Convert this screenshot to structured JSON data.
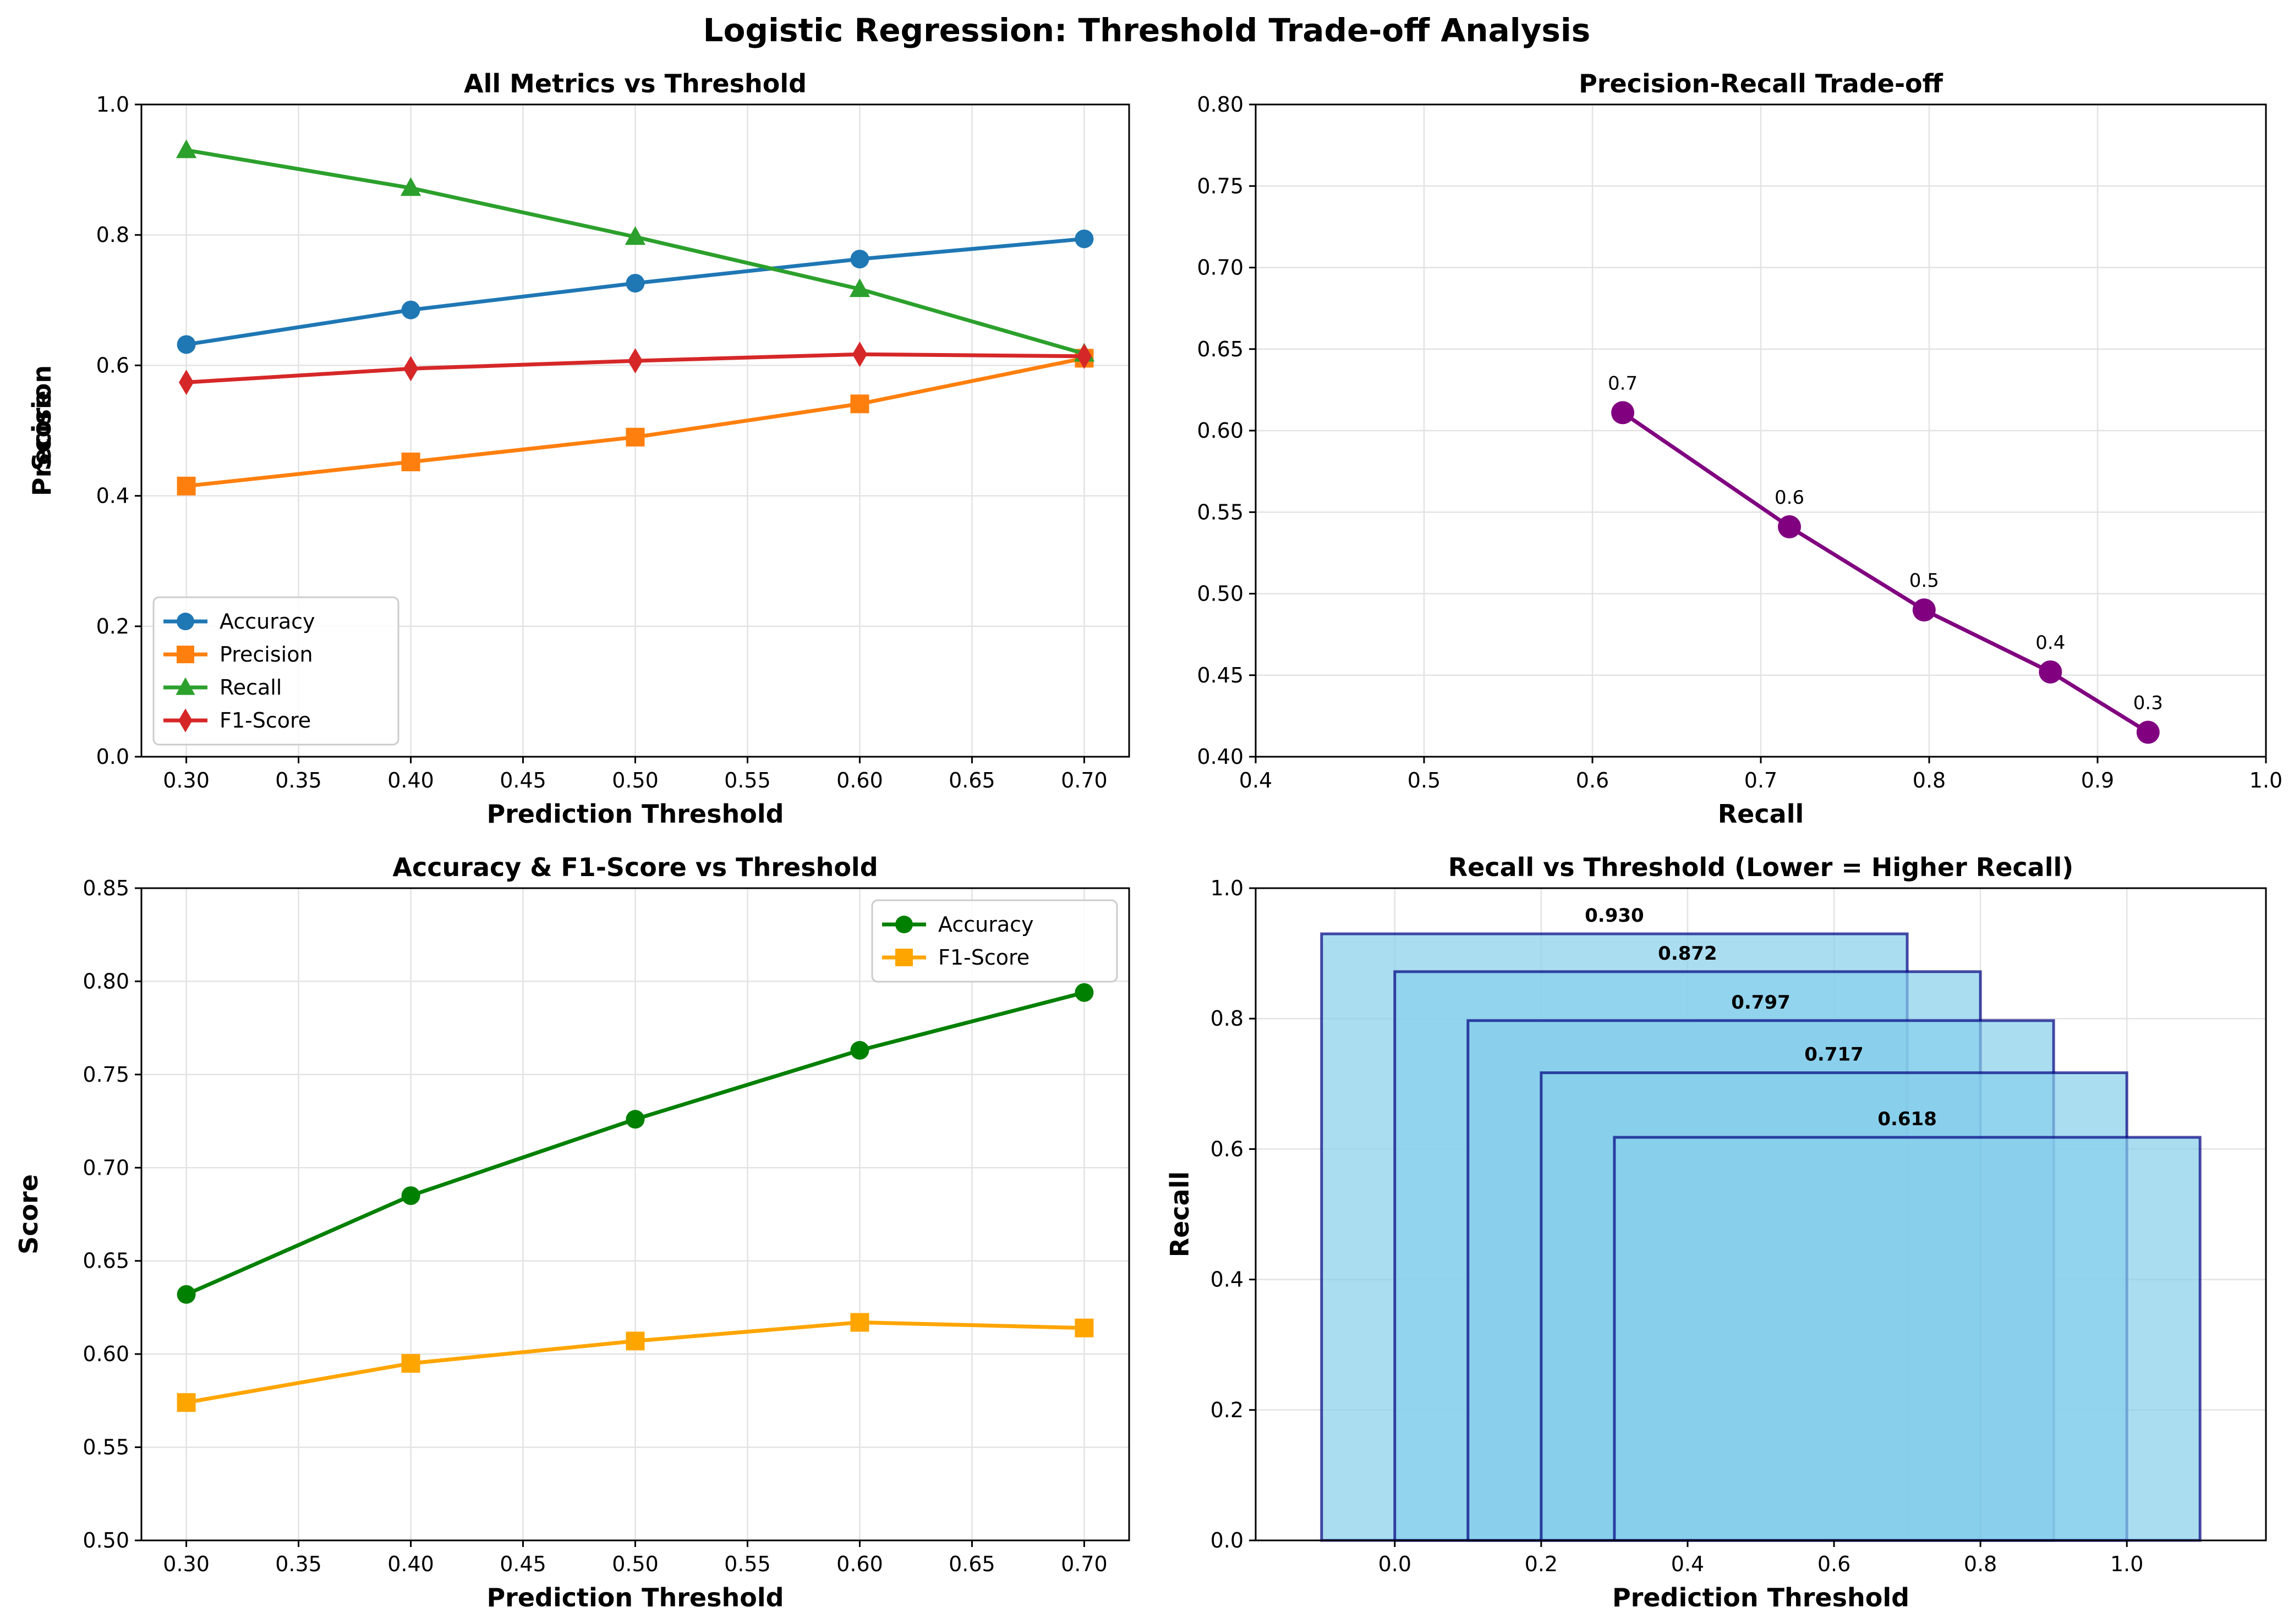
{
  "figure": {
    "title": "Logistic Regression: Threshold Trade-off Analysis"
  },
  "chart_data": [
    {
      "type": "line",
      "title": "All Metrics vs Threshold",
      "xlabel": "Prediction Threshold",
      "ylabel": "Score",
      "xlim": [
        0.28,
        0.72
      ],
      "ylim": [
        0.0,
        1.0
      ],
      "xticks": [
        "0.30",
        "0.35",
        "0.40",
        "0.45",
        "0.50",
        "0.55",
        "0.60",
        "0.65",
        "0.70"
      ],
      "yticks": [
        "0.0",
        "0.2",
        "0.4",
        "0.6",
        "0.8",
        "1.0"
      ],
      "grid": true,
      "legend": "lower-left",
      "x": [
        0.3,
        0.4,
        0.5,
        0.6,
        0.7
      ],
      "series": [
        {
          "name": "Accuracy",
          "color": "#1f77b4",
          "marker": "circle",
          "values": [
            0.632,
            0.685,
            0.726,
            0.763,
            0.794
          ]
        },
        {
          "name": "Precision",
          "color": "#ff7f0e",
          "marker": "square",
          "values": [
            0.415,
            0.452,
            0.49,
            0.541,
            0.611
          ]
        },
        {
          "name": "Recall",
          "color": "#2ca02c",
          "marker": "triangle",
          "values": [
            0.93,
            0.872,
            0.797,
            0.717,
            0.618
          ]
        },
        {
          "name": "F1-Score",
          "color": "#d62728",
          "marker": "diamond",
          "values": [
            0.574,
            0.595,
            0.607,
            0.617,
            0.614
          ]
        }
      ]
    },
    {
      "type": "line",
      "title": "Precision-Recall Trade-off",
      "xlabel": "Recall",
      "ylabel": "Precision",
      "xlim": [
        0.4,
        1.0
      ],
      "ylim": [
        0.4,
        0.8
      ],
      "xticks": [
        "0.4",
        "0.5",
        "0.6",
        "0.7",
        "0.8",
        "0.9",
        "1.0"
      ],
      "yticks": [
        "0.40",
        "0.45",
        "0.50",
        "0.55",
        "0.60",
        "0.65",
        "0.70",
        "0.75",
        "0.80"
      ],
      "grid": true,
      "color": "#800080",
      "points": [
        {
          "x": 0.93,
          "y": 0.415,
          "label": "0.3"
        },
        {
          "x": 0.872,
          "y": 0.452,
          "label": "0.4"
        },
        {
          "x": 0.797,
          "y": 0.49,
          "label": "0.5"
        },
        {
          "x": 0.717,
          "y": 0.541,
          "label": "0.6"
        },
        {
          "x": 0.618,
          "y": 0.611,
          "label": "0.7"
        }
      ]
    },
    {
      "type": "line",
      "title": "Accuracy & F1-Score vs Threshold",
      "xlabel": "Prediction Threshold",
      "ylabel": "Score",
      "xlim": [
        0.28,
        0.72
      ],
      "ylim": [
        0.5,
        0.85
      ],
      "xticks": [
        "0.30",
        "0.35",
        "0.40",
        "0.45",
        "0.50",
        "0.55",
        "0.60",
        "0.65",
        "0.70"
      ],
      "yticks": [
        "0.50",
        "0.55",
        "0.60",
        "0.65",
        "0.70",
        "0.75",
        "0.80",
        "0.85"
      ],
      "grid": true,
      "legend": "upper-right",
      "x": [
        0.3,
        0.4,
        0.5,
        0.6,
        0.7
      ],
      "series": [
        {
          "name": "Accuracy",
          "color": "#008000",
          "marker": "circle",
          "values": [
            0.632,
            0.685,
            0.726,
            0.763,
            0.794
          ]
        },
        {
          "name": "F1-Score",
          "color": "#ffa500",
          "marker": "square",
          "values": [
            0.574,
            0.595,
            0.607,
            0.617,
            0.614
          ]
        }
      ]
    },
    {
      "type": "bar",
      "title": "Recall vs Threshold (Lower = Higher Recall)",
      "xlabel": "Prediction Threshold",
      "ylabel": "Recall",
      "xlim": [
        -0.19,
        1.19
      ],
      "ylim": [
        0.0,
        1.0
      ],
      "xticks": [
        "0.0",
        "0.2",
        "0.4",
        "0.6",
        "0.8",
        "1.0"
      ],
      "yticks": [
        "0.0",
        "0.2",
        "0.4",
        "0.6",
        "0.8",
        "1.0"
      ],
      "grid": true,
      "bar_width": 0.8,
      "fill_color": "#87ceeb",
      "edge_color": "#000080",
      "bars": [
        {
          "x": 0.3,
          "value": 0.93,
          "label": "0.930"
        },
        {
          "x": 0.4,
          "value": 0.872,
          "label": "0.872"
        },
        {
          "x": 0.5,
          "value": 0.797,
          "label": "0.797"
        },
        {
          "x": 0.6,
          "value": 0.717,
          "label": "0.717"
        },
        {
          "x": 0.7,
          "value": 0.618,
          "label": "0.618"
        }
      ]
    }
  ]
}
